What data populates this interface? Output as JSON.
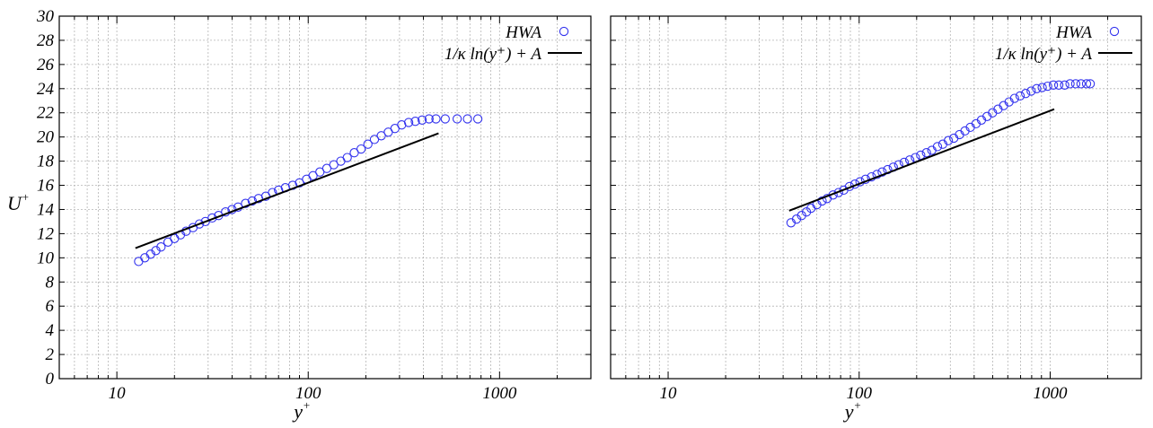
{
  "chart_data": [
    {
      "type": "scatter",
      "xscale": "log",
      "xlim": [
        5,
        3000
      ],
      "ylim": [
        0,
        30
      ],
      "grid": true,
      "legend_position": "top-right",
      "xlabel": "y",
      "xlabel_sup": "+",
      "ylabel": "U",
      "ylabel_sup": "+",
      "yticks": [
        "0",
        "2",
        "4",
        "6",
        "8",
        "10",
        "12",
        "14",
        "16",
        "18",
        "20",
        "22",
        "24",
        "26",
        "28",
        "30"
      ],
      "xticks": [
        {
          "value": 10,
          "label": "10"
        },
        {
          "value": 100,
          "label": "100"
        },
        {
          "value": 1000,
          "label": "1000"
        }
      ],
      "series": [
        {
          "name": "HWA",
          "kind": "markers",
          "color": "#3333ee",
          "x": [
            13,
            14,
            15,
            16,
            17,
            18.5,
            20,
            21.5,
            23,
            25,
            27,
            29,
            31.5,
            34,
            37,
            40,
            43,
            47,
            51,
            55,
            60,
            65,
            70,
            76,
            83,
            90,
            98,
            106,
            115,
            125,
            136,
            148,
            160,
            174,
            189,
            205,
            222,
            241,
            262,
            284,
            308,
            335,
            363,
            394,
            428,
            465,
            520,
            600,
            680,
            770
          ],
          "y": [
            9.7,
            10.0,
            10.3,
            10.6,
            10.9,
            11.3,
            11.6,
            11.9,
            12.2,
            12.5,
            12.8,
            13.0,
            13.3,
            13.5,
            13.8,
            14.0,
            14.2,
            14.5,
            14.7,
            14.9,
            15.1,
            15.4,
            15.6,
            15.8,
            16.0,
            16.2,
            16.5,
            16.8,
            17.1,
            17.4,
            17.7,
            18.0,
            18.3,
            18.7,
            19.0,
            19.4,
            19.8,
            20.1,
            20.4,
            20.7,
            21.0,
            21.2,
            21.3,
            21.4,
            21.5,
            21.5,
            21.5,
            21.5,
            21.5,
            21.5
          ]
        },
        {
          "name": "1/κ ln(y⁺) + A",
          "kind": "line",
          "color": "#000000",
          "x": [
            12.5,
            480
          ],
          "y": [
            10.8,
            20.3
          ]
        }
      ]
    },
    {
      "type": "scatter",
      "xscale": "log",
      "xlim": [
        5,
        3000
      ],
      "ylim": [
        0,
        30
      ],
      "grid": true,
      "legend_position": "top-right",
      "xlabel": "y",
      "xlabel_sup": "+",
      "xticks": [
        {
          "value": 10,
          "label": "10"
        },
        {
          "value": 100,
          "label": "100"
        },
        {
          "value": 1000,
          "label": "1000"
        }
      ],
      "series": [
        {
          "name": "HWA",
          "kind": "markers",
          "color": "#3333ee",
          "x": [
            44,
            47,
            50,
            53,
            56,
            60,
            64,
            68,
            73,
            78,
            83,
            89,
            95,
            101,
            108,
            116,
            124,
            132,
            141,
            151,
            161,
            172,
            184,
            197,
            210,
            225,
            240,
            257,
            274,
            293,
            313,
            335,
            358,
            382,
            409,
            437,
            467,
            499,
            533,
            570,
            609,
            651,
            696,
            744,
            795,
            850,
            908,
            970,
            1040,
            1110,
            1190,
            1270,
            1360,
            1450,
            1550,
            1620
          ],
          "y": [
            12.9,
            13.2,
            13.5,
            13.8,
            14.1,
            14.4,
            14.7,
            14.9,
            15.2,
            15.4,
            15.6,
            15.9,
            16.1,
            16.3,
            16.5,
            16.7,
            16.9,
            17.1,
            17.3,
            17.5,
            17.7,
            17.9,
            18.1,
            18.3,
            18.5,
            18.7,
            18.9,
            19.2,
            19.4,
            19.7,
            19.9,
            20.2,
            20.5,
            20.8,
            21.1,
            21.4,
            21.7,
            22.0,
            22.3,
            22.6,
            22.9,
            23.2,
            23.4,
            23.6,
            23.8,
            24.0,
            24.1,
            24.2,
            24.3,
            24.3,
            24.3,
            24.4,
            24.4,
            24.4,
            24.4,
            24.4
          ]
        },
        {
          "name": "1/κ ln(y⁺) + A",
          "kind": "line",
          "color": "#000000",
          "x": [
            43,
            1050
          ],
          "y": [
            13.9,
            22.3
          ]
        }
      ]
    }
  ]
}
